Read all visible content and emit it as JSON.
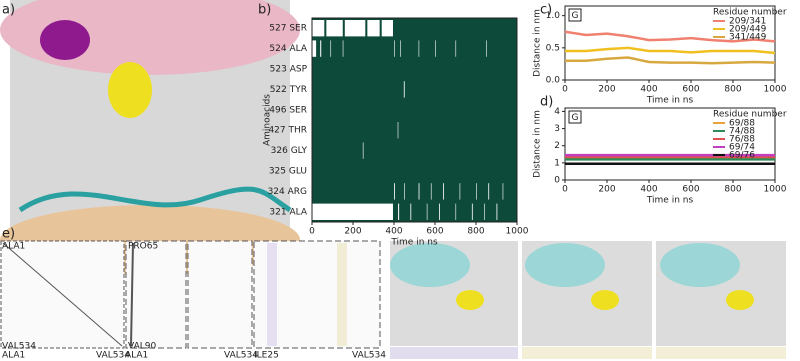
{
  "panel_labels": [
    "a)",
    "b)",
    "c)",
    "d)",
    "e)"
  ],
  "chart_data": [
    {
      "type": "raster",
      "xlabel": "Time in ns",
      "ylabel": "Aminoacids",
      "background": "#0d4a3a",
      "stripe_color": "#ffffff",
      "categories": [
        "527 SER",
        "524 ALA",
        "523 ASP",
        "522 TYR",
        "496 SER",
        "427 THR",
        "326 GLY",
        "325 GLU",
        "324 ARG",
        "321 ALA"
      ],
      "white_intervals": [
        [
          [
            0,
            60
          ],
          [
            70,
            150
          ],
          [
            160,
            260
          ],
          [
            270,
            330
          ],
          [
            340,
            395
          ]
        ],
        [
          [
            0,
            20
          ],
          [
            40,
            45
          ],
          [
            90,
            92
          ],
          [
            150,
            152
          ],
          [
            400,
            403
          ],
          [
            430,
            432
          ],
          [
            520,
            522
          ],
          [
            600,
            602
          ],
          [
            700,
            702
          ],
          [
            850,
            852
          ]
        ],
        [],
        [
          [
            448,
            452
          ]
        ],
        [],
        [
          [
            418,
            421
          ]
        ],
        [
          [
            248,
            251
          ]
        ],
        [],
        [
          [
            400,
            404
          ],
          [
            450,
            453
          ],
          [
            520,
            524
          ],
          [
            580,
            583
          ],
          [
            640,
            644
          ],
          [
            720,
            723
          ],
          [
            800,
            803
          ],
          [
            860,
            864
          ],
          [
            930,
            933
          ]
        ],
        [
          [
            0,
            395
          ],
          [
            420,
            425
          ],
          [
            480,
            484
          ],
          [
            560,
            563
          ],
          [
            620,
            624
          ],
          [
            700,
            703
          ],
          [
            780,
            784
          ],
          [
            840,
            843
          ],
          [
            900,
            904
          ]
        ]
      ],
      "xlim": [
        0,
        1000
      ],
      "xticks": [
        0,
        200,
        400,
        600,
        800,
        1000
      ]
    },
    {
      "type": "line",
      "xlabel": "Time in ns",
      "ylabel": "Distance in nm",
      "badge": "G",
      "legend_title": "Residue number",
      "x": [
        0,
        100,
        200,
        300,
        400,
        500,
        600,
        700,
        800,
        900,
        1000
      ],
      "series": [
        {
          "name": "209/341",
          "color": "#f08070",
          "values": [
            0.75,
            0.7,
            0.72,
            0.68,
            0.62,
            0.63,
            0.65,
            0.62,
            0.6,
            0.63,
            0.6
          ]
        },
        {
          "name": "209/449",
          "color": "#f0c020",
          "values": [
            0.45,
            0.45,
            0.48,
            0.5,
            0.45,
            0.45,
            0.43,
            0.45,
            0.45,
            0.45,
            0.42
          ]
        },
        {
          "name": "341/449",
          "color": "#d8a840",
          "values": [
            0.3,
            0.3,
            0.33,
            0.35,
            0.28,
            0.27,
            0.27,
            0.26,
            0.27,
            0.28,
            0.27
          ]
        }
      ],
      "xlim": [
        0,
        1000
      ],
      "xticks": [
        0,
        200,
        400,
        600,
        800,
        1000
      ],
      "ylim": [
        0,
        1.15
      ],
      "yticks": [
        {
          "value": 0,
          "label": "0.0"
        },
        {
          "value": 0.5,
          "label": "0.5"
        },
        {
          "value": 1,
          "label": "1.0"
        }
      ]
    },
    {
      "type": "line",
      "xlabel": "Time in ns",
      "ylabel": "Distance in nm",
      "badge": "G",
      "legend_title": "Residue number",
      "x": [
        0,
        100,
        200,
        300,
        400,
        500,
        600,
        700,
        800,
        900,
        1000
      ],
      "series": [
        {
          "name": "69/88",
          "color": "#e8a33a",
          "values": [
            1.3,
            1.3,
            1.3,
            1.3,
            1.3,
            1.3,
            1.3,
            1.3,
            1.3,
            1.3,
            1.3
          ]
        },
        {
          "name": "74/88",
          "color": "#2e8b57",
          "values": [
            1.2,
            1.2,
            1.2,
            1.2,
            1.2,
            1.2,
            1.2,
            1.2,
            1.2,
            1.2,
            1.2
          ]
        },
        {
          "name": "76/88",
          "color": "#e05050",
          "values": [
            1.35,
            1.35,
            1.35,
            1.35,
            1.35,
            1.35,
            1.35,
            1.35,
            1.35,
            1.35,
            1.35
          ]
        },
        {
          "name": "69/74",
          "color": "#c040c0",
          "values": [
            1.45,
            1.45,
            1.45,
            1.45,
            1.45,
            1.45,
            1.45,
            1.45,
            1.45,
            1.45,
            1.45
          ]
        },
        {
          "name": "69/76",
          "color": "#111111",
          "values": [
            0.95,
            0.95,
            0.95,
            0.95,
            0.95,
            0.95,
            0.95,
            0.95,
            0.95,
            0.95,
            0.95
          ]
        }
      ],
      "xlim": [
        0,
        1000
      ],
      "xticks": [
        0,
        200,
        400,
        600,
        800,
        1000
      ],
      "ylim": [
        0,
        4.2
      ],
      "yticks": [
        0,
        1,
        2,
        3,
        4
      ]
    }
  ],
  "panel_e": {
    "matrix_labels": [
      "ALA1",
      "VAL534",
      "ALA1",
      "VAL534",
      "PRO65",
      "VAL90",
      "ALA1",
      "VAL534",
      "ILE25",
      "VAL534"
    ]
  }
}
